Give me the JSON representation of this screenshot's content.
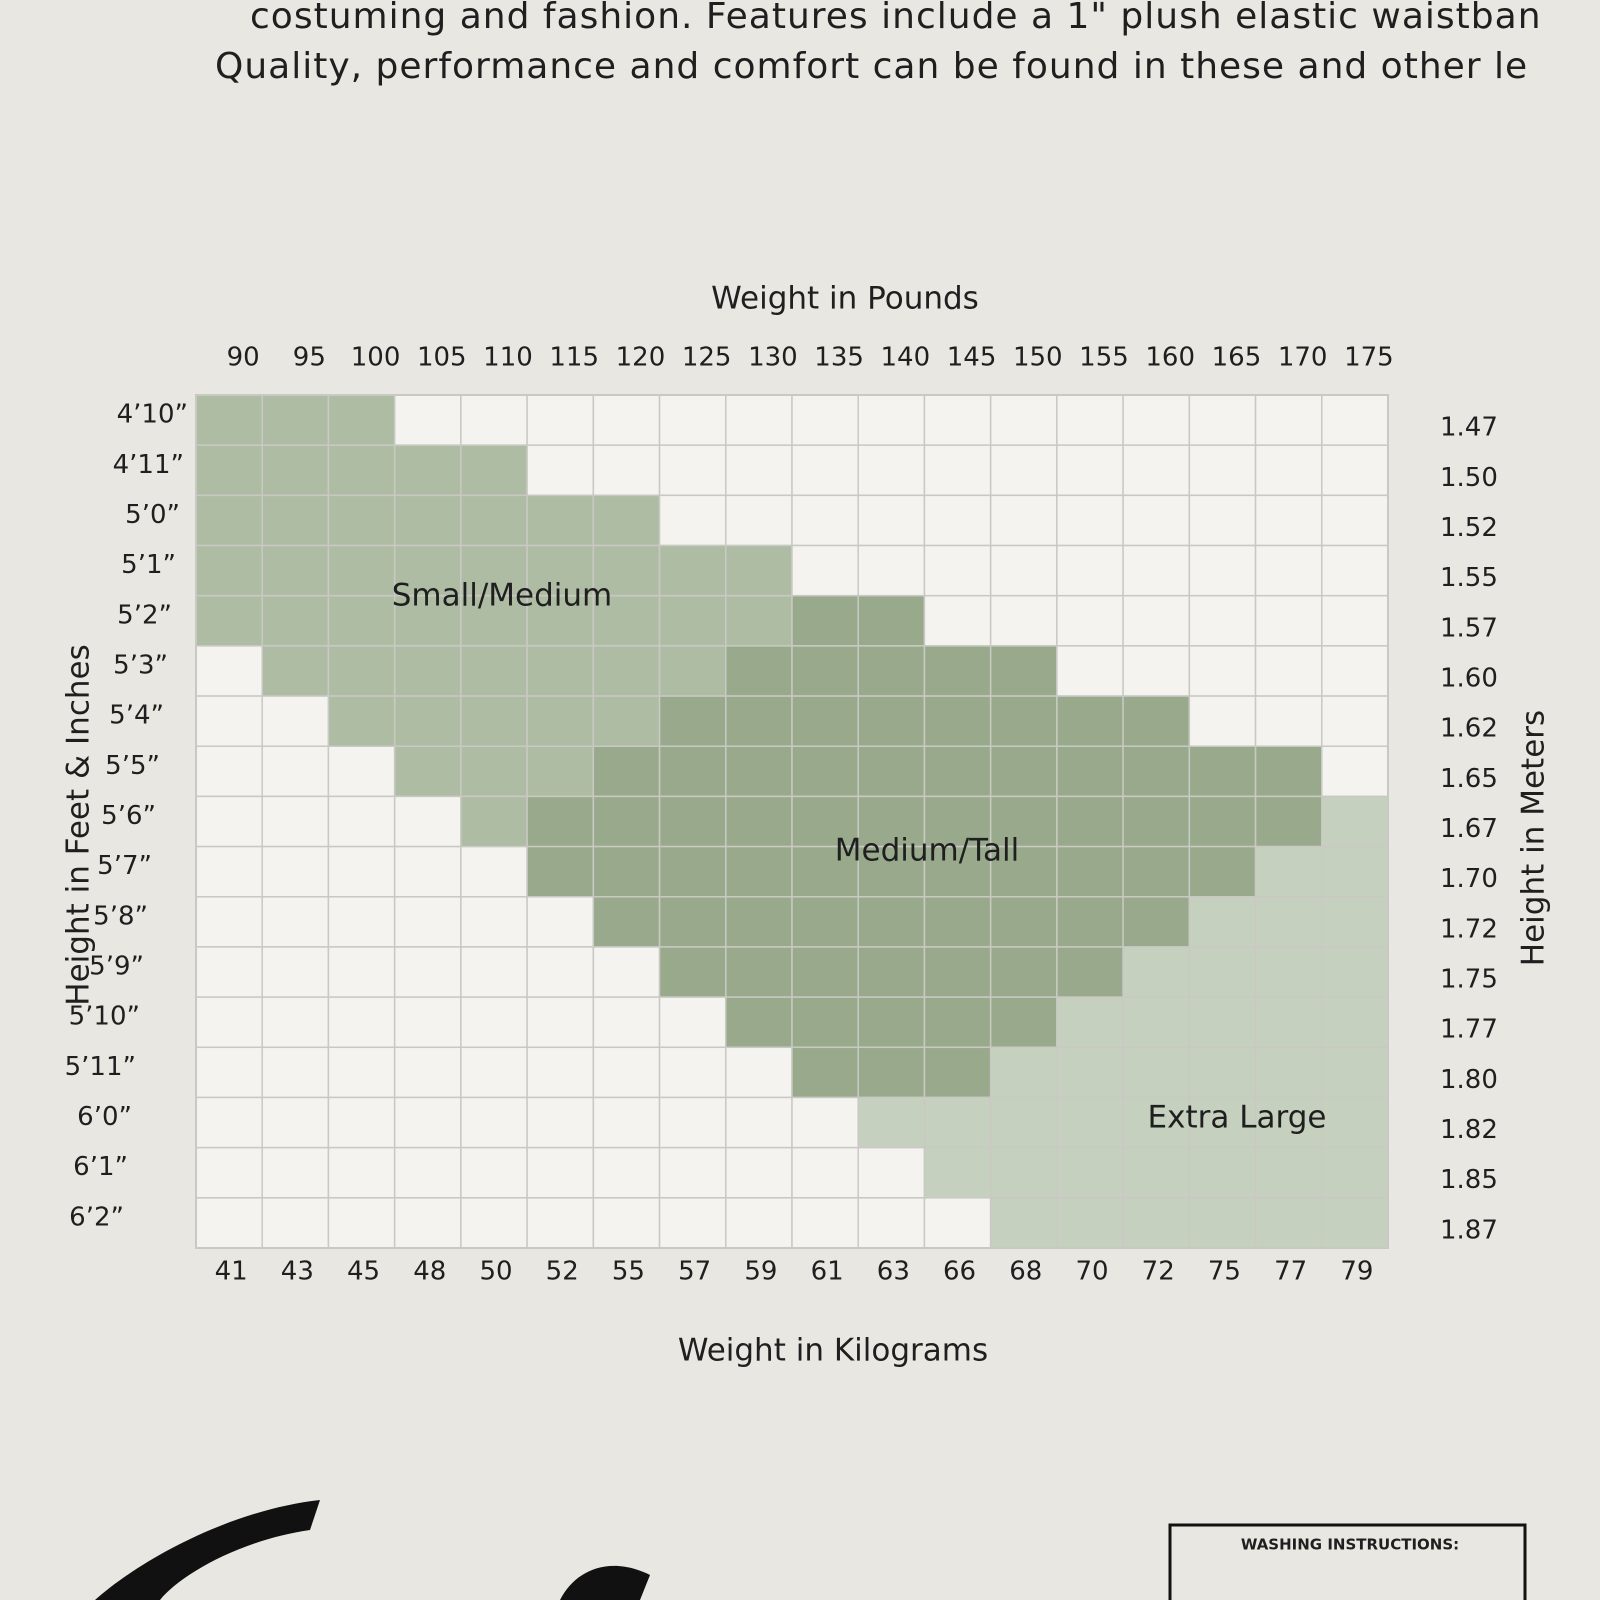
{
  "header": {
    "lines": [
      "costuming and fashion. Features include a 1\" plush elastic waistban",
      "Quality, performance and comfort can be found in these and other le"
    ]
  },
  "chart": {
    "top_axis_title": "Weight in Pounds",
    "bottom_axis_title": "Weight in Kilograms",
    "left_axis_title": "Height in Feet & Inches",
    "right_axis_title": "Height in Meters",
    "pounds": [
      "90",
      "95",
      "100",
      "105",
      "110",
      "115",
      "120",
      "125",
      "130",
      "135",
      "140",
      "145",
      "150",
      "155",
      "160",
      "165",
      "170",
      "175"
    ],
    "kilograms": [
      "41",
      "43",
      "45",
      "48",
      "50",
      "52",
      "55",
      "57",
      "59",
      "61",
      "63",
      "66",
      "68",
      "70",
      "72",
      "75",
      "77",
      "79"
    ],
    "heights": [
      "4’10”",
      "4’11”",
      "5’0”",
      "5’1”",
      "5’2”",
      "5’3”",
      "5’4”",
      "5’5”",
      "5’6”",
      "5’7”",
      "5’8”",
      "5’9”",
      "5’10”",
      "5’11”",
      "6’0”",
      "6’1”",
      "6’2”"
    ],
    "meters": [
      "1.47",
      "1.50",
      "1.52",
      "1.55",
      "1.57",
      "1.60",
      "1.62",
      "1.65",
      "1.67",
      "1.70",
      "1.72",
      "1.75",
      "1.77",
      "1.80",
      "1.82",
      "1.85",
      "1.87"
    ],
    "regions": [
      {
        "label": "Small/Medium",
        "color": "#afbca4"
      },
      {
        "label": "Medium/Tall",
        "color": "#99aa8c"
      },
      {
        "label": "Extra Large",
        "color": "#c6d0be"
      }
    ],
    "cells": [
      [
        0,
        0,
        0,
        null,
        null,
        null,
        null,
        null,
        null,
        null,
        null,
        null,
        null,
        null,
        null,
        null,
        null,
        null
      ],
      [
        0,
        0,
        0,
        0,
        0,
        null,
        null,
        null,
        null,
        null,
        null,
        null,
        null,
        null,
        null,
        null,
        null,
        null
      ],
      [
        0,
        0,
        0,
        0,
        0,
        0,
        0,
        null,
        null,
        null,
        null,
        null,
        null,
        null,
        null,
        null,
        null,
        null
      ],
      [
        0,
        0,
        0,
        0,
        0,
        0,
        0,
        0,
        0,
        null,
        null,
        null,
        null,
        null,
        null,
        null,
        null,
        null
      ],
      [
        0,
        0,
        0,
        0,
        0,
        0,
        0,
        0,
        0,
        1,
        1,
        null,
        null,
        null,
        null,
        null,
        null,
        null
      ],
      [
        null,
        0,
        0,
        0,
        0,
        0,
        0,
        0,
        1,
        1,
        1,
        1,
        1,
        null,
        null,
        null,
        null,
        null
      ],
      [
        null,
        null,
        0,
        0,
        0,
        0,
        0,
        1,
        1,
        1,
        1,
        1,
        1,
        1,
        1,
        null,
        null,
        null
      ],
      [
        null,
        null,
        null,
        0,
        0,
        0,
        1,
        1,
        1,
        1,
        1,
        1,
        1,
        1,
        1,
        1,
        1,
        null
      ],
      [
        null,
        null,
        null,
        null,
        0,
        1,
        1,
        1,
        1,
        1,
        1,
        1,
        1,
        1,
        1,
        1,
        1,
        2
      ],
      [
        null,
        null,
        null,
        null,
        null,
        1,
        1,
        1,
        1,
        1,
        1,
        1,
        1,
        1,
        1,
        1,
        2,
        2
      ],
      [
        null,
        null,
        null,
        null,
        null,
        null,
        1,
        1,
        1,
        1,
        1,
        1,
        1,
        1,
        1,
        2,
        2,
        2
      ],
      [
        null,
        null,
        null,
        null,
        null,
        null,
        null,
        1,
        1,
        1,
        1,
        1,
        1,
        1,
        2,
        2,
        2,
        2
      ],
      [
        null,
        null,
        null,
        null,
        null,
        null,
        null,
        null,
        1,
        1,
        1,
        1,
        1,
        2,
        2,
        2,
        2,
        2
      ],
      [
        null,
        null,
        null,
        null,
        null,
        null,
        null,
        null,
        null,
        1,
        1,
        1,
        2,
        2,
        2,
        2,
        2,
        2
      ],
      [
        null,
        null,
        null,
        null,
        null,
        null,
        null,
        null,
        null,
        null,
        2,
        2,
        2,
        2,
        2,
        2,
        2,
        2
      ],
      [
        null,
        null,
        null,
        null,
        null,
        null,
        null,
        null,
        null,
        null,
        null,
        2,
        2,
        2,
        2,
        2,
        2,
        2
      ],
      [
        null,
        null,
        null,
        null,
        null,
        null,
        null,
        null,
        null,
        null,
        null,
        null,
        2,
        2,
        2,
        2,
        2,
        2
      ]
    ]
  },
  "footer": {
    "washing_title": "WASHING INSTRUCTIONS:"
  }
}
